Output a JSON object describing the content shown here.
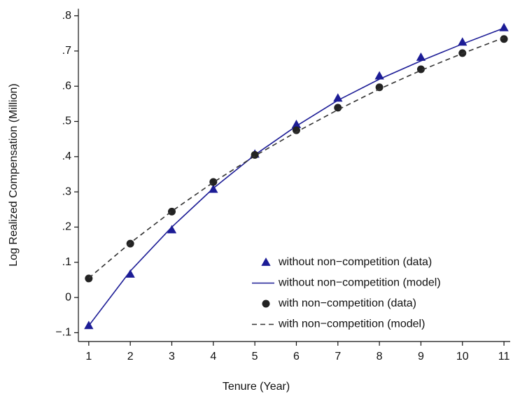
{
  "chart_data": {
    "type": "line",
    "x_label": "Tenure (Year)",
    "y_label": "Log Realized Compensation (Million)",
    "x": [
      1,
      2,
      3,
      4,
      5,
      6,
      7,
      8,
      9,
      10,
      11
    ],
    "xlim": [
      0.75,
      11.15
    ],
    "xticks": [
      1,
      2,
      3,
      4,
      5,
      6,
      7,
      8,
      9,
      10,
      11
    ],
    "ylim": [
      -0.125,
      0.82
    ],
    "yticks": [
      {
        "value": -0.1,
        "label": "−.1"
      },
      0,
      {
        "value": 0.1,
        "label": ".1"
      },
      {
        "value": 0.2,
        "label": ".2"
      },
      {
        "value": 0.3,
        "label": ".3"
      },
      {
        "value": 0.4,
        "label": ".4"
      },
      {
        "value": 0.5,
        "label": ".5"
      },
      {
        "value": 0.6,
        "label": ".6"
      },
      {
        "value": 0.7,
        "label": ".7"
      },
      {
        "value": 0.8,
        "label": ".8"
      }
    ],
    "grid": false,
    "legend": "lower right",
    "series": [
      {
        "name": "without non−competition (data)",
        "mode": "markers",
        "marker": "triangle",
        "color": "#1c1c96",
        "values": [
          -0.08,
          0.066,
          0.192,
          0.307,
          0.407,
          0.491,
          0.566,
          0.629,
          0.682,
          0.725,
          0.766
        ]
      },
      {
        "name": "without non−competition (model)",
        "mode": "line",
        "dash": false,
        "color": "#1c1c96",
        "values": [
          -0.08,
          0.075,
          0.2,
          0.31,
          0.405,
          0.487,
          0.56,
          0.62,
          0.672,
          0.72,
          0.765
        ]
      },
      {
        "name": "with non−competition (data)",
        "mode": "markers",
        "marker": "circle",
        "color": "#222222",
        "values": [
          0.054,
          0.153,
          0.244,
          0.328,
          0.405,
          0.475,
          0.539,
          0.597,
          0.648,
          0.694,
          0.734
        ]
      },
      {
        "name": "with non−competition (model)",
        "mode": "line",
        "dash": true,
        "color": "#333333",
        "values": [
          0.055,
          0.155,
          0.245,
          0.327,
          0.402,
          0.47,
          0.533,
          0.592,
          0.645,
          0.693,
          0.738
        ]
      }
    ]
  }
}
